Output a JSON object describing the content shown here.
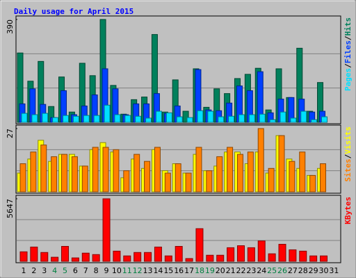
{
  "chart_data": {
    "type": "bar",
    "title": "Daily usage for April 2015",
    "categories": [
      "1",
      "2",
      "3",
      "4",
      "5",
      "6",
      "7",
      "8",
      "9",
      "10",
      "11",
      "12",
      "13",
      "14",
      "15",
      "16",
      "17",
      "18",
      "19",
      "20",
      "21",
      "22",
      "23",
      "24",
      "25",
      "26",
      "27",
      "28",
      "29",
      "30",
      "31"
    ],
    "category_colors": [
      "#000000",
      "#000000",
      "#000000",
      "#008040",
      "#008040",
      "#000000",
      "#000000",
      "#000000",
      "#000000",
      "#000000",
      "#008040",
      "#008040",
      "#000000",
      "#000000",
      "#000000",
      "#000000",
      "#000000",
      "#008040",
      "#008040",
      "#000000",
      "#000000",
      "#000000",
      "#000000",
      "#000000",
      "#008040",
      "#008040",
      "#000000",
      "#000000",
      "#000000",
      "#000000",
      "#000000"
    ],
    "legend_separator": "/",
    "panels": [
      {
        "ylim": [
          0,
          390
        ],
        "yticks": [
          390
        ],
        "series": [
          {
            "name": "Hits",
            "color": "#00805c",
            "values": [
              263,
              156,
              231,
              60,
              172,
              39,
              224,
              177,
              390,
              140,
              31,
              86,
              96,
              333,
              39,
              161,
              42,
              203,
              57,
              127,
              109,
              166,
              182,
              205,
              47,
              203,
              94,
              281,
              42,
              151,
              0
            ]
          },
          {
            "name": "Files",
            "color": "#0040ff",
            "values": [
              70,
              127,
              68,
              18,
              120,
              29,
              62,
              104,
              203,
              127,
              29,
              70,
              70,
              109,
              34,
              62,
              0,
              200,
              47,
              44,
              73,
              138,
              120,
              192,
              36,
              88,
              94,
              88,
              39,
              42,
              0
            ]
          },
          {
            "name": "Pages",
            "color": "#00e0ff",
            "values": [
              34,
              29,
              34,
              18,
              26,
              23,
              26,
              26,
              65,
              29,
              26,
              23,
              16,
              42,
              36,
              21,
              18,
              44,
              42,
              21,
              23,
              29,
              29,
              31,
              10,
              39,
              16,
              42,
              10,
              21,
              0
            ]
          }
        ]
      },
      {
        "ylim": [
          0,
          27
        ],
        "yticks": [
          27
        ],
        "series": [
          {
            "name": "Visits",
            "color": "#ffff00",
            "values": [
              8,
              14,
              22,
              13,
              16,
              16,
              11,
              18,
              21,
              17,
              6,
              14,
              10,
              18,
              9,
              12,
              8,
              16,
              9,
              11,
              17,
              17,
              12,
              17,
              8,
              24,
              14,
              10,
              7,
              10,
              0
            ]
          },
          {
            "name": "Sites",
            "color": "#ff8000",
            "values": [
              12,
              17,
              20,
              15,
              16,
              15,
              11,
              19,
              19,
              18,
              9,
              16,
              13,
              19,
              8,
              12,
              8,
              19,
              9,
              15,
              19,
              16,
              17,
              27,
              10,
              24,
              13,
              17,
              7,
              12,
              0
            ]
          }
        ]
      },
      {
        "ylim": [
          0,
          5647
        ],
        "yticks": [
          5647
        ],
        "series": [
          {
            "name": "KBytes",
            "color": "#ff0000",
            "values": [
              860,
              1290,
              800,
              370,
              1350,
              310,
              740,
              610,
              5647,
              920,
              490,
              800,
              800,
              1290,
              490,
              1350,
              250,
              2950,
              550,
              550,
              1230,
              1410,
              1230,
              1840,
              680,
              1540,
              1040,
              920,
              490,
              490,
              0
            ]
          }
        ]
      }
    ]
  }
}
